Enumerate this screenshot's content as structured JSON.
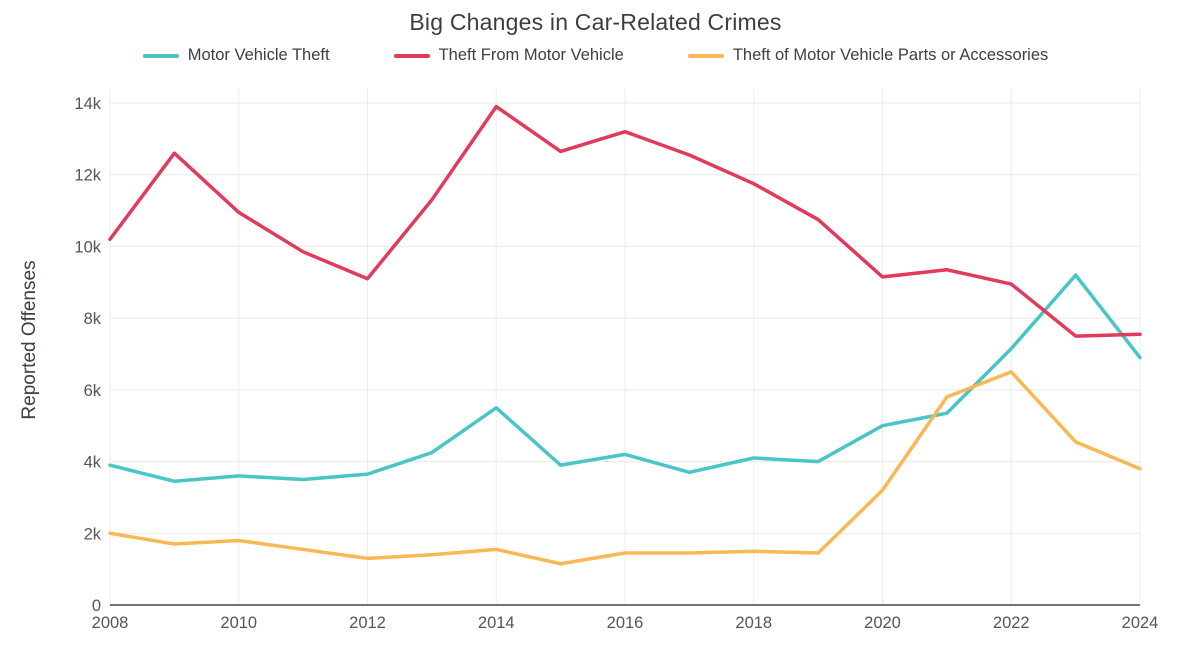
{
  "chart": {
    "title": "Big Changes in Car-Related Crimes",
    "y_axis_title": "Reported Offenses"
  },
  "chart_data": {
    "type": "line",
    "title": "Big Changes in Car-Related Crimes",
    "xlabel": "",
    "ylabel": "Reported Offenses",
    "ylim": [
      0,
      14000
    ],
    "grid": true,
    "legend_position": "top",
    "x": [
      2008,
      2009,
      2010,
      2011,
      2012,
      2013,
      2014,
      2015,
      2016,
      2017,
      2018,
      2019,
      2020,
      2021,
      2022,
      2023,
      2024
    ],
    "series": [
      {
        "name": "Motor Vehicle Theft",
        "color": "#49C5C8",
        "values": [
          3900,
          3450,
          3600,
          3500,
          3650,
          4250,
          5500,
          3900,
          4200,
          3700,
          4100,
          4000,
          5000,
          5350,
          7150,
          9200,
          6900
        ]
      },
      {
        "name": "Theft From Motor Vehicle",
        "color": "#E13A5B",
        "values": [
          10200,
          12600,
          10950,
          9850,
          9100,
          11300,
          13900,
          12650,
          13200,
          12550,
          11750,
          10750,
          9150,
          9350,
          8950,
          7500,
          7550
        ]
      },
      {
        "name": "Theft of Motor Vehicle Parts or Accessories",
        "color": "#F8B854",
        "values": [
          2000,
          1700,
          1800,
          1550,
          1300,
          1400,
          1550,
          1150,
          1450,
          1450,
          1500,
          1450,
          3200,
          5800,
          6500,
          4550,
          3800
        ]
      }
    ],
    "yticks": [
      {
        "value": 0,
        "label": "0"
      },
      {
        "value": 2000,
        "label": "2k"
      },
      {
        "value": 4000,
        "label": "4k"
      },
      {
        "value": 6000,
        "label": "6k"
      },
      {
        "value": 8000,
        "label": "8k"
      },
      {
        "value": 10000,
        "label": "10k"
      },
      {
        "value": 12000,
        "label": "12k"
      },
      {
        "value": 14000,
        "label": "14k"
      }
    ],
    "xticks": [
      {
        "value": 2008,
        "label": "2008"
      },
      {
        "value": 2010,
        "label": "2010"
      },
      {
        "value": 2012,
        "label": "2012"
      },
      {
        "value": 2014,
        "label": "2014"
      },
      {
        "value": 2016,
        "label": "2016"
      },
      {
        "value": 2018,
        "label": "2018"
      },
      {
        "value": 2020,
        "label": "2020"
      },
      {
        "value": 2022,
        "label": "2022"
      },
      {
        "value": 2024,
        "label": "2024"
      }
    ]
  }
}
